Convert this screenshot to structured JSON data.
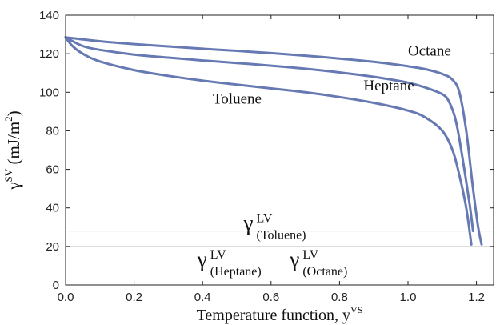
{
  "chart_data": {
    "type": "line",
    "xlabel": "Temperature function, y",
    "xlabel_superscript": "VS",
    "ylabel": {
      "base": "γ",
      "superscript": "SV",
      "text": " (mJ/m",
      "unit_superscript": "2",
      "close": ")"
    },
    "xlim": [
      0.0,
      1.25
    ],
    "ylim": [
      0,
      140
    ],
    "xticks": [
      "0.0",
      "0.2",
      "0.4",
      "0.6",
      "0.8",
      "1.0",
      "1.2"
    ],
    "yticks": [
      "0",
      "20",
      "40",
      "60",
      "80",
      "100",
      "120",
      "140"
    ],
    "grid": false,
    "series": [
      {
        "name": "Octane",
        "points": [
          [
            0.0,
            128.5
          ],
          [
            0.1,
            126.5
          ],
          [
            0.2,
            125.0
          ],
          [
            0.3,
            123.8
          ],
          [
            0.4,
            122.6
          ],
          [
            0.5,
            121.5
          ],
          [
            0.6,
            120.3
          ],
          [
            0.7,
            119.0
          ],
          [
            0.8,
            117.5
          ],
          [
            0.9,
            115.8
          ],
          [
            1.0,
            113.5
          ],
          [
            1.05,
            112.0
          ],
          [
            1.1,
            109.5
          ],
          [
            1.13,
            106.5
          ],
          [
            1.15,
            100.0
          ],
          [
            1.17,
            80.0
          ],
          [
            1.19,
            50.0
          ],
          [
            1.205,
            30.0
          ],
          [
            1.215,
            21.0
          ]
        ]
      },
      {
        "name": "Heptane",
        "points": [
          [
            0.0,
            128.5
          ],
          [
            0.05,
            124.0
          ],
          [
            0.1,
            122.0
          ],
          [
            0.2,
            119.5
          ],
          [
            0.3,
            118.0
          ],
          [
            0.4,
            116.5
          ],
          [
            0.5,
            115.2
          ],
          [
            0.6,
            113.8
          ],
          [
            0.7,
            112.2
          ],
          [
            0.8,
            110.3
          ],
          [
            0.9,
            108.0
          ],
          [
            1.0,
            105.0
          ],
          [
            1.05,
            102.5
          ],
          [
            1.1,
            99.0
          ],
          [
            1.12,
            95.0
          ],
          [
            1.14,
            85.0
          ],
          [
            1.16,
            65.0
          ],
          [
            1.18,
            42.0
          ],
          [
            1.19,
            28.0
          ]
        ]
      },
      {
        "name": "Toluene",
        "points": [
          [
            0.0,
            128.5
          ],
          [
            0.02,
            124.0
          ],
          [
            0.05,
            120.0
          ],
          [
            0.1,
            116.0
          ],
          [
            0.2,
            111.5
          ],
          [
            0.3,
            108.5
          ],
          [
            0.4,
            106.0
          ],
          [
            0.5,
            104.0
          ],
          [
            0.6,
            102.0
          ],
          [
            0.7,
            100.0
          ],
          [
            0.8,
            97.5
          ],
          [
            0.9,
            94.5
          ],
          [
            1.0,
            90.5
          ],
          [
            1.05,
            87.0
          ],
          [
            1.1,
            80.0
          ],
          [
            1.13,
            70.0
          ],
          [
            1.15,
            57.0
          ],
          [
            1.17,
            40.0
          ],
          [
            1.185,
            21.0
          ]
        ]
      }
    ],
    "series_labels": [
      {
        "text": "Octane",
        "x": 1.0,
        "y": 119
      },
      {
        "text": "Heptane",
        "x": 0.87,
        "y": 101
      },
      {
        "text": "Toluene",
        "x": 0.43,
        "y": 94
      }
    ],
    "reference_lines": [
      {
        "name": "γ LV (Toluene)",
        "y": 28
      },
      {
        "name": "γ LV (Heptane/Octane)",
        "y": 20
      }
    ],
    "annotations": [
      {
        "base": "γ",
        "sup": "LV",
        "sub": "(Toluene)",
        "x": 0.52,
        "y": 28.5
      },
      {
        "base": "γ",
        "sup": "LV",
        "sub": "(Heptane)",
        "x": 0.385,
        "y": 9.5
      },
      {
        "base": "γ",
        "sup": "LV",
        "sub": "(Octane)",
        "x": 0.655,
        "y": 9.5
      }
    ],
    "colors": {
      "series": "#6679b3",
      "reference": "#c8c8c8",
      "axis": "#222222"
    }
  }
}
